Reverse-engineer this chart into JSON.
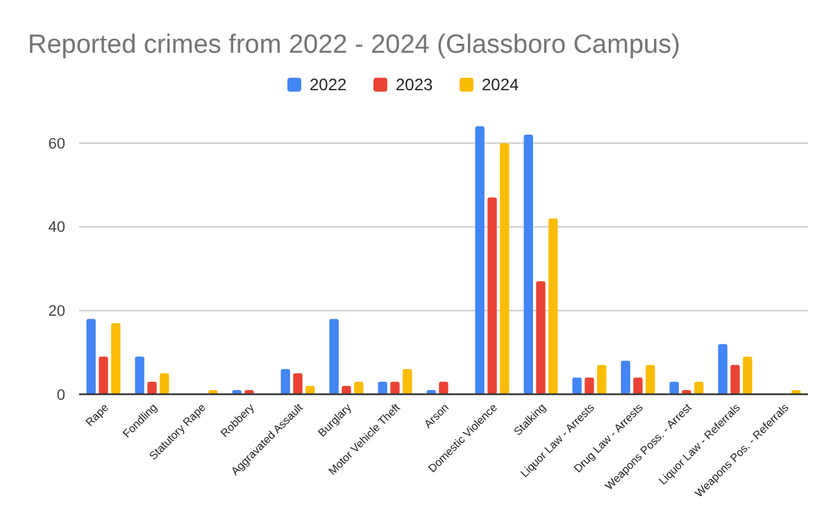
{
  "chart_data": {
    "type": "bar",
    "title": "Reported crimes from 2022 - 2024 (Glassboro Campus)",
    "categories": [
      "Rape",
      "Fondling",
      "Statutory Rape",
      "Robbery",
      "Aggravated Assault",
      "Burglary",
      "Motor Vehicle Theft",
      "Arson",
      "Domestic Violence",
      "Stalking",
      "Liquor Law - Arrests",
      "Drug Law - Arrests",
      "Weapons Poss. - Arrest",
      "Liquor Law - Referrals",
      "Weapons Pos. - Referrals"
    ],
    "series": [
      {
        "name": "2022",
        "color": "#4285f4",
        "values": [
          18,
          9,
          0,
          1,
          6,
          18,
          3,
          1,
          64,
          62,
          4,
          8,
          3,
          12,
          0
        ]
      },
      {
        "name": "2023",
        "color": "#ea4335",
        "values": [
          9,
          3,
          0,
          1,
          5,
          2,
          3,
          3,
          47,
          27,
          4,
          4,
          1,
          7,
          0
        ]
      },
      {
        "name": "2024",
        "color": "#fbbc04",
        "values": [
          17,
          5,
          1,
          0,
          2,
          3,
          6,
          0,
          60,
          42,
          7,
          7,
          3,
          9,
          1
        ]
      }
    ],
    "ylim": [
      0,
      64
    ],
    "yticks": [
      0,
      20,
      40,
      60
    ],
    "grid": "y",
    "legend": "top"
  }
}
